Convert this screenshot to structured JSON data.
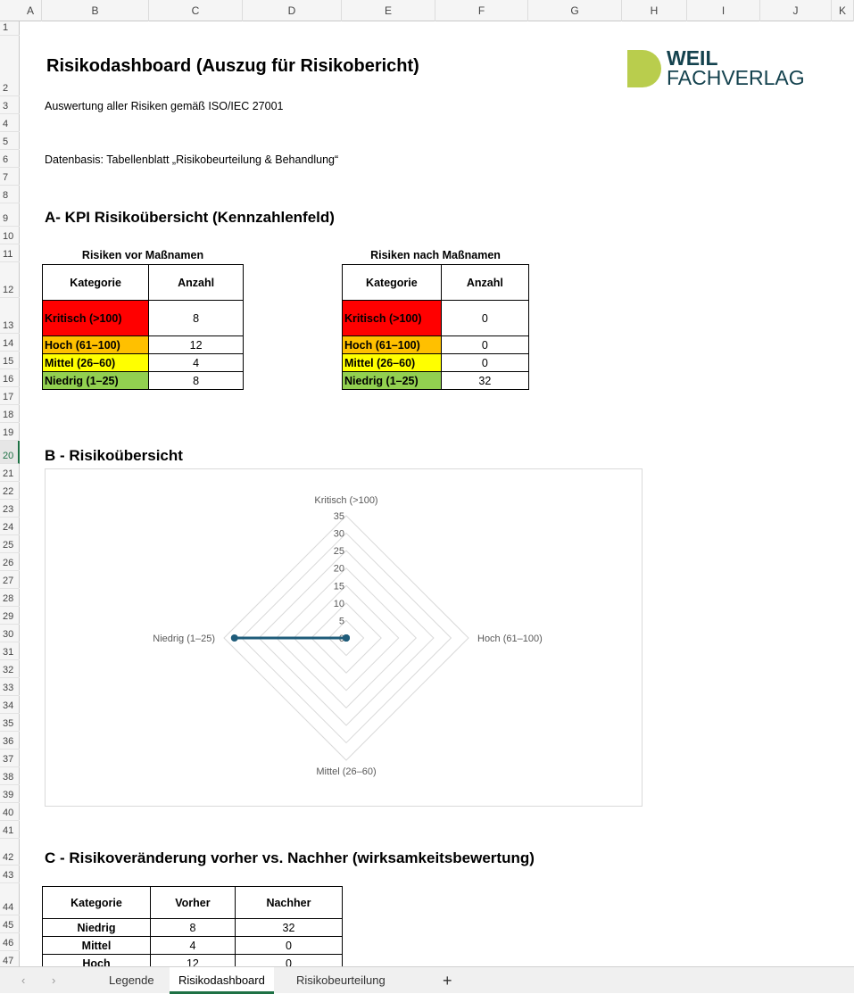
{
  "columns": [
    "A",
    "B",
    "C",
    "D",
    "E",
    "F",
    "G",
    "H",
    "I",
    "J",
    "K"
  ],
  "title": "Risikodashboard (Auszug für Risikobericht)",
  "subtitle": "Auswertung aller Risiken gemäß ISO/IEC 27001",
  "data_basis": "Datenbasis: Tabellenblatt „Risikobeurteilung & Behandlung“",
  "logo": {
    "line1": "WEIL",
    "line2": "FACHVERLAG",
    "colors": {
      "mark": "#b9cd4d",
      "text": "#14424e"
    }
  },
  "section_a": {
    "heading": "A- KPI Risikoübersicht (Kennzahlenfeld)",
    "before": {
      "caption": "Risiken vor Maßnamen",
      "headers": [
        "Kategorie",
        "Anzahl"
      ],
      "rows": [
        {
          "cat": "Kritisch (>100)",
          "n": "8",
          "color": "#ff0000"
        },
        {
          "cat": "Hoch (61–100)",
          "n": "12",
          "color": "#ffc000"
        },
        {
          "cat": "Mittel (26–60)",
          "n": "4",
          "color": "#ffff00"
        },
        {
          "cat": "Niedrig (1–25)",
          "n": "8",
          "color": "#92d050"
        }
      ]
    },
    "after": {
      "caption": "Risiken nach Maßnamen",
      "headers": [
        "Kategorie",
        "Anzahl"
      ],
      "rows": [
        {
          "cat": "Kritisch (>100)",
          "n": "0",
          "color": "#ff0000"
        },
        {
          "cat": "Hoch (61–100)",
          "n": "0",
          "color": "#ffc000"
        },
        {
          "cat": "Mittel (26–60)",
          "n": "0",
          "color": "#ffff00"
        },
        {
          "cat": "Niedrig (1–25)",
          "n": "32",
          "color": "#92d050"
        }
      ]
    }
  },
  "section_b": {
    "heading": "B - Risikoübersicht"
  },
  "chart_data": {
    "type": "radar",
    "categories": [
      "Kritisch (>100)",
      "Hoch (61–100)",
      "Mittel (26–60)",
      "Niedrig (1–25)"
    ],
    "series": [
      {
        "values": [
          0,
          0,
          0,
          32
        ],
        "color": "#1f5c7a"
      }
    ],
    "rlim": [
      0,
      35
    ],
    "ticks": [
      "0",
      "5",
      "10",
      "15",
      "20",
      "25",
      "30",
      "35"
    ],
    "grid": true,
    "legend": "none"
  },
  "section_c": {
    "heading": "C - Risikoveränderung vorher vs. Nachher (wirksamkeitsbewertung)",
    "headers": [
      "Kategorie",
      "Vorher",
      "Nachher"
    ],
    "rows": [
      [
        "Niedrig",
        "8",
        "32"
      ],
      [
        "Mittel",
        "4",
        "0"
      ],
      [
        "Hoch",
        "12",
        "0"
      ]
    ]
  },
  "tabs": [
    "Legende",
    "Risikodashboard",
    "Risikobeurteilung"
  ],
  "active_tab": "Risikodashboard",
  "add_sheet": "+",
  "nav": {
    "prev": "‹",
    "next": "›"
  }
}
